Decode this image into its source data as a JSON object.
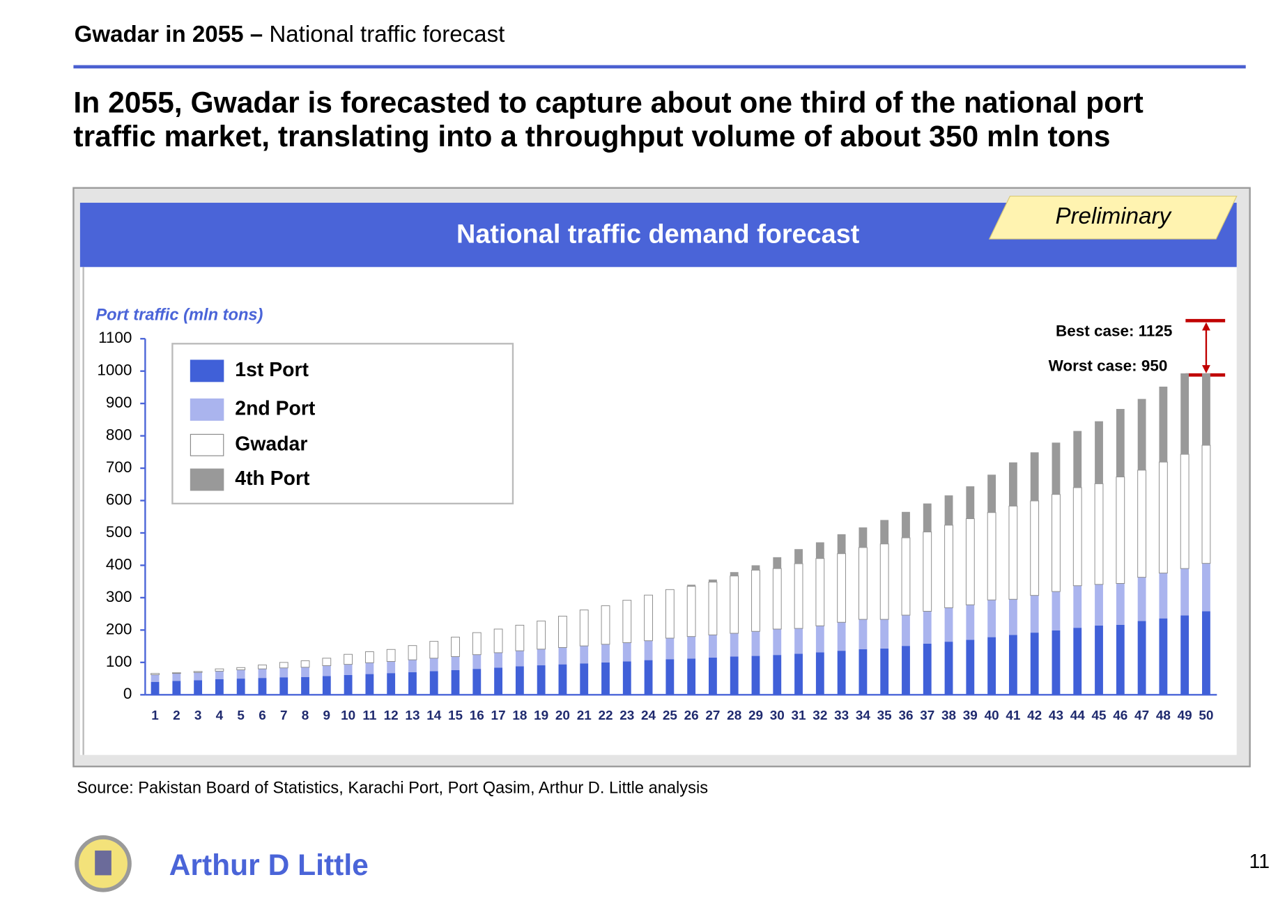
{
  "header": {
    "title_bold": "Gwadar in 2055 –",
    "title": "National traffic forecast"
  },
  "headline": [
    "In 2055, Gwadar is forecasted to capture about one third of the national port",
    "traffic market, translating into a throughput volume of about 350 mln tons"
  ],
  "chart_data": {
    "type": "stacked_bar",
    "title": "National traffic demand forecast",
    "badge": "Preliminary",
    "y_label": "Port traffic (mln tons)",
    "ylim": [
      0,
      1100
    ],
    "yticks": [
      0,
      100,
      200,
      300,
      400,
      500,
      600,
      700,
      800,
      900,
      1000,
      1100
    ],
    "categories": [
      "1",
      "2",
      "3",
      "4",
      "5",
      "6",
      "7",
      "8",
      "9",
      "10",
      "11",
      "12",
      "13",
      "14",
      "15",
      "16",
      "17",
      "18",
      "19",
      "20",
      "21",
      "22",
      "23",
      "24",
      "25",
      "26",
      "27",
      "28",
      "29",
      "30",
      "31",
      "32",
      "33",
      "34",
      "35",
      "36",
      "37",
      "38",
      "39",
      "40",
      "41",
      "42",
      "43",
      "44",
      "45",
      "46",
      "47",
      "48",
      "49",
      "50"
    ],
    "series": [
      {
        "name": "1st Port",
        "color": "#4060d8",
        "values": [
          40,
          43,
          45,
          48,
          50,
          52,
          54,
          55,
          58,
          61,
          64,
          67,
          70,
          73,
          76,
          80,
          84,
          88,
          91,
          94,
          97,
          100,
          103,
          107,
          110,
          112,
          115,
          118,
          120,
          123,
          127,
          131,
          136,
          141,
          143,
          151,
          158,
          164,
          170,
          178,
          185,
          192,
          199,
          207,
          214,
          216,
          228,
          236,
          245,
          258
        ]
      },
      {
        "name": "2nd Port",
        "color": "#aab4ee",
        "values": [
          22,
          23,
          24,
          25,
          27,
          28,
          29,
          30,
          32,
          33,
          35,
          36,
          38,
          40,
          42,
          44,
          46,
          48,
          50,
          52,
          54,
          56,
          58,
          60,
          65,
          68,
          70,
          72,
          76,
          80,
          78,
          82,
          88,
          92,
          90,
          95,
          100,
          105,
          108,
          115,
          110,
          115,
          120,
          130,
          127,
          128,
          135,
          140,
          145,
          148
        ]
      },
      {
        "name": "Gwadar",
        "color": "#ffffff",
        "values": [
          4,
          2,
          3,
          7,
          7,
          12,
          17,
          20,
          23,
          31,
          34,
          37,
          44,
          52,
          60,
          68,
          73,
          79,
          87,
          97,
          111,
          119,
          131,
          141,
          150,
          155,
          163,
          177,
          189,
          187,
          200,
          208,
          212,
          222,
          233,
          239,
          245,
          255,
          266,
          270,
          288,
          292,
          300,
          303,
          311,
          329,
          331,
          343,
          353,
          365
        ]
      },
      {
        "name": "4th Port",
        "color": "#999999",
        "values": [
          0,
          0,
          0,
          0,
          0,
          0,
          0,
          0,
          0,
          0,
          0,
          0,
          0,
          0,
          0,
          0,
          0,
          0,
          0,
          0,
          0,
          0,
          0,
          0,
          0,
          5,
          8,
          12,
          15,
          35,
          45,
          50,
          60,
          62,
          74,
          80,
          88,
          92,
          100,
          117,
          135,
          150,
          160,
          175,
          193,
          210,
          220,
          233,
          250,
          222
        ]
      }
    ],
    "annotations": [
      "Best case: 1125",
      "Worst case: 950"
    ]
  },
  "source": "Source: Pakistan Board of Statistics, Karachi Port, Port Qasim, Arthur D. Little analysis",
  "footer": {
    "brand": "Arthur D Little",
    "page": "11"
  }
}
